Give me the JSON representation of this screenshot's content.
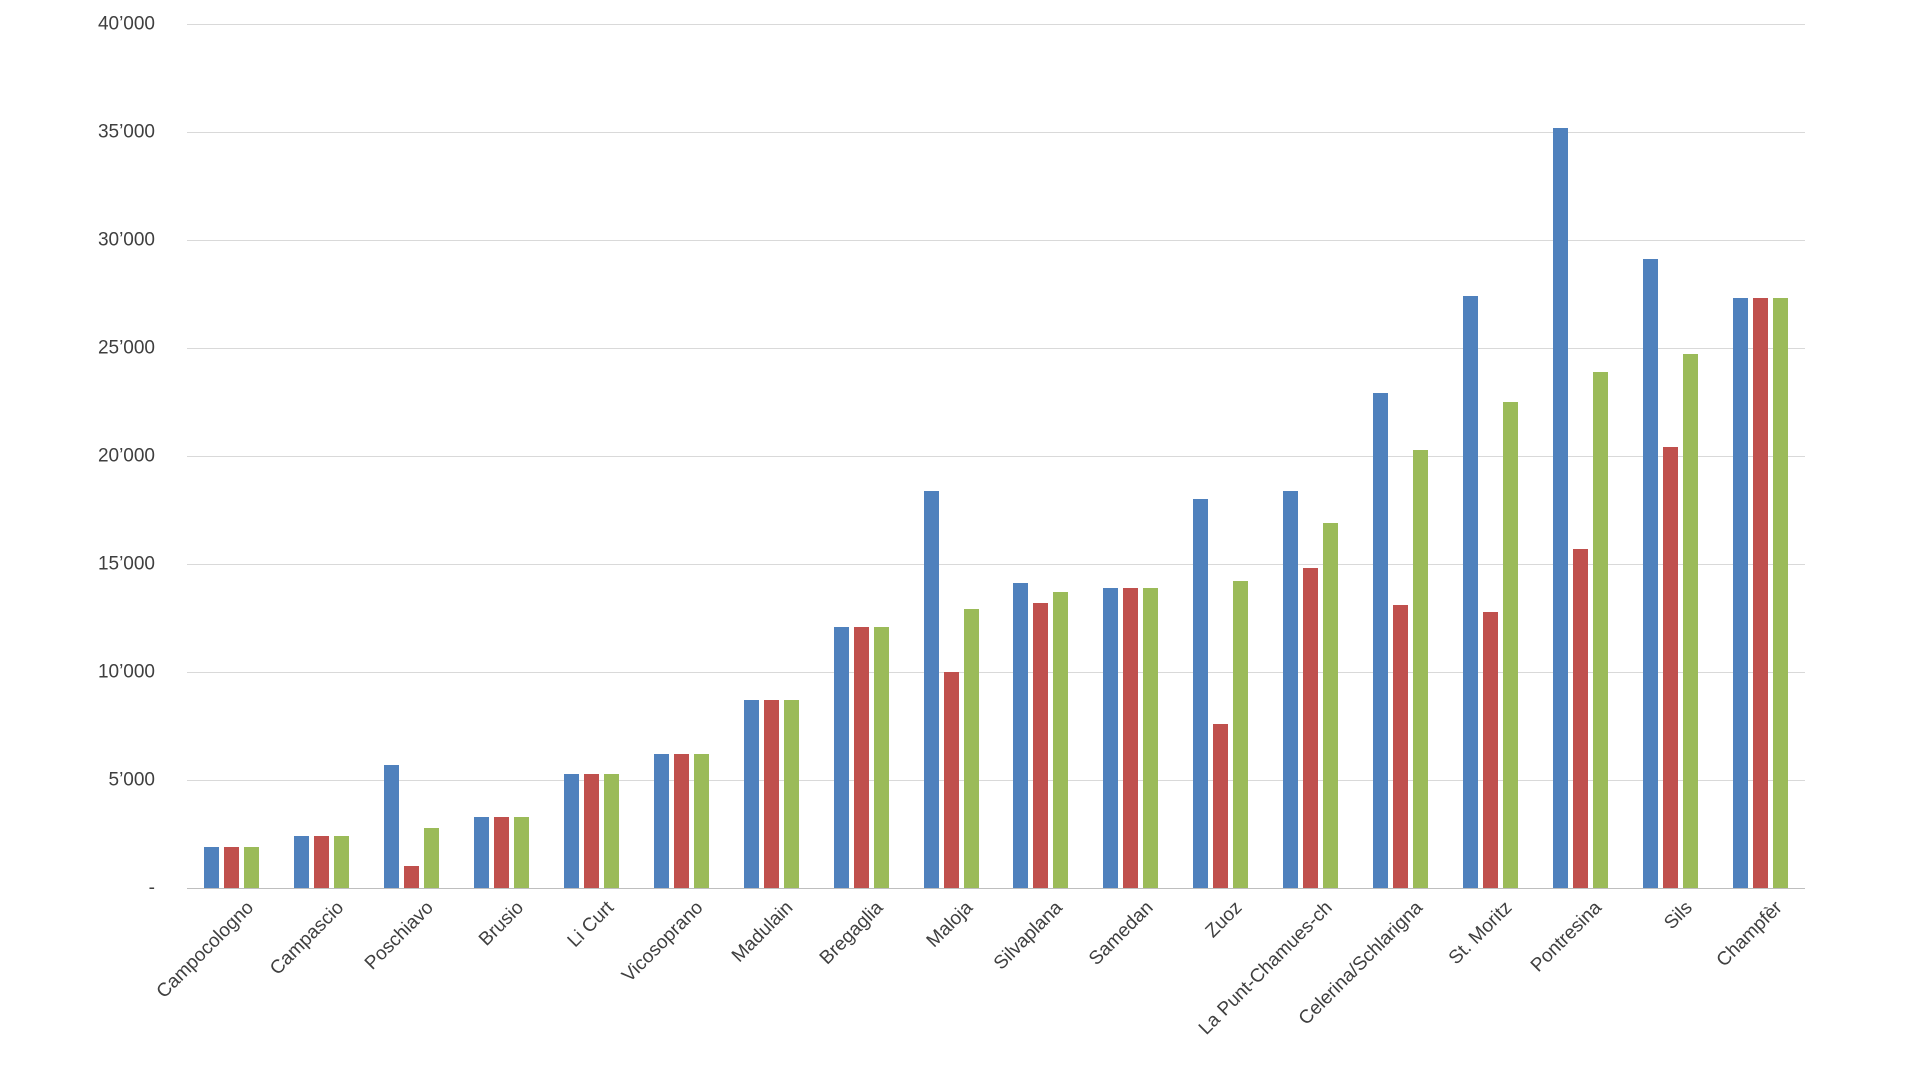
{
  "chart_data": {
    "type": "bar",
    "title": "",
    "xlabel": "",
    "ylabel": "",
    "categories": [
      "Campocologno",
      "Campascio",
      "Poschiavo",
      "Brusio",
      "Li Curt",
      "Vicosoprano",
      "Madulain",
      "Bregaglia",
      "Maloja",
      "Silvaplana",
      "Samedan",
      "Zuoz",
      "La Punt-Chamues-ch",
      "Celerina/Schlarigna",
      "St. Moritz",
      "Pontresina",
      "Sils",
      "Champfèr"
    ],
    "series": [
      {
        "name": "blue",
        "color": "#4F81BD",
        "values": [
          1900,
          2400,
          5700,
          3300,
          5300,
          6200,
          8700,
          12100,
          18400,
          14100,
          13900,
          18000,
          18400,
          22900,
          27400,
          35200,
          29100,
          27300
        ]
      },
      {
        "name": "red",
        "color": "#C0504D",
        "values": [
          1900,
          2400,
          1000,
          3300,
          5300,
          6200,
          8700,
          12100,
          10000,
          13200,
          13900,
          7600,
          14800,
          13100,
          12800,
          15700,
          20400,
          27300
        ]
      },
      {
        "name": "green",
        "color": "#9BBB59",
        "values": [
          1900,
          2400,
          2800,
          3300,
          5300,
          6200,
          8700,
          12100,
          12900,
          13700,
          13900,
          14200,
          16900,
          20300,
          22500,
          23900,
          24700,
          27300
        ]
      }
    ],
    "ylim": [
      0,
      40000
    ],
    "y_tick_step": 5000,
    "y_tick_labels": [
      "-",
      "5’000",
      "10’000",
      "15’000",
      "20’000",
      "25’000",
      "30’000",
      "35’000",
      "40’000"
    ],
    "grid": true,
    "legend": "none",
    "x_label_rotation_deg": 45
  },
  "style": {
    "background": "#FFFFFF",
    "grid_color": "#D9D9D9",
    "axis_color": "#BEBEBE",
    "text_color": "#3F3F3F"
  }
}
